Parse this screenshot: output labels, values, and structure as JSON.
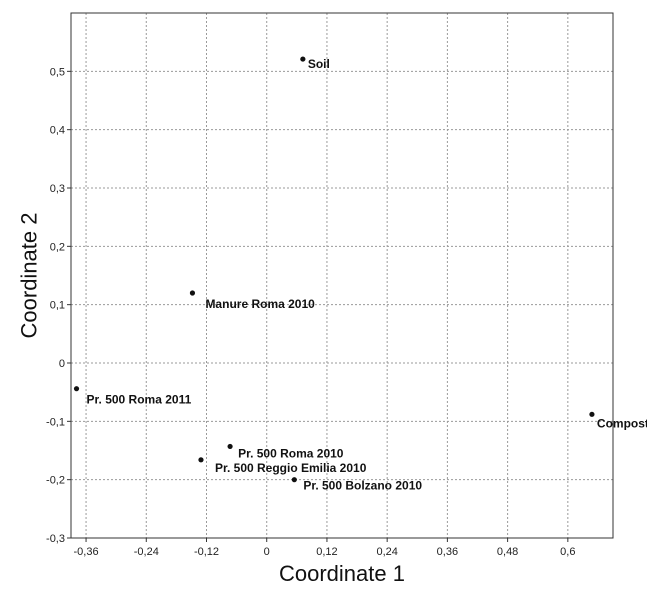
{
  "chart_data": {
    "type": "scatter",
    "xlabel": "Coordinate 1",
    "ylabel": "Coordinate 2",
    "xlim": [
      -0.39,
      0.69
    ],
    "ylim": [
      -0.3,
      0.6
    ],
    "x_ticks": [
      -0.36,
      -0.24,
      -0.12,
      0,
      0.12,
      0.24,
      0.36,
      0.48,
      0.6
    ],
    "x_tick_labels": [
      "-0,36",
      "-0,24",
      "-0,12",
      "0",
      "0,12",
      "0,24",
      "0,36",
      "0,48",
      "0,6"
    ],
    "y_ticks": [
      -0.3,
      -0.2,
      -0.1,
      0,
      0.1,
      0.2,
      0.3,
      0.4,
      0.5
    ],
    "y_tick_labels": [
      "-0,3",
      "-0,2",
      "-0,1",
      "0",
      "0,1",
      "0,2",
      "0,3",
      "0,4",
      "0,5"
    ],
    "grid": true,
    "points": [
      {
        "label": "Soil",
        "x": 0.072,
        "y": 0.521
      },
      {
        "label": "Manure Roma 2010",
        "x": -0.148,
        "y": 0.12
      },
      {
        "label": "Pr. 500 Roma 2011",
        "x": -0.379,
        "y": -0.044
      },
      {
        "label": "Compost",
        "x": 0.648,
        "y": -0.088
      },
      {
        "label": "Pr. 500 Roma 2010",
        "x": -0.073,
        "y": -0.143
      },
      {
        "label": "Pr. 500 Reggio Emilia 2010",
        "x": -0.131,
        "y": -0.166
      },
      {
        "label": "Pr. 500 Bolzano 2010",
        "x": 0.055,
        "y": -0.2
      }
    ]
  }
}
